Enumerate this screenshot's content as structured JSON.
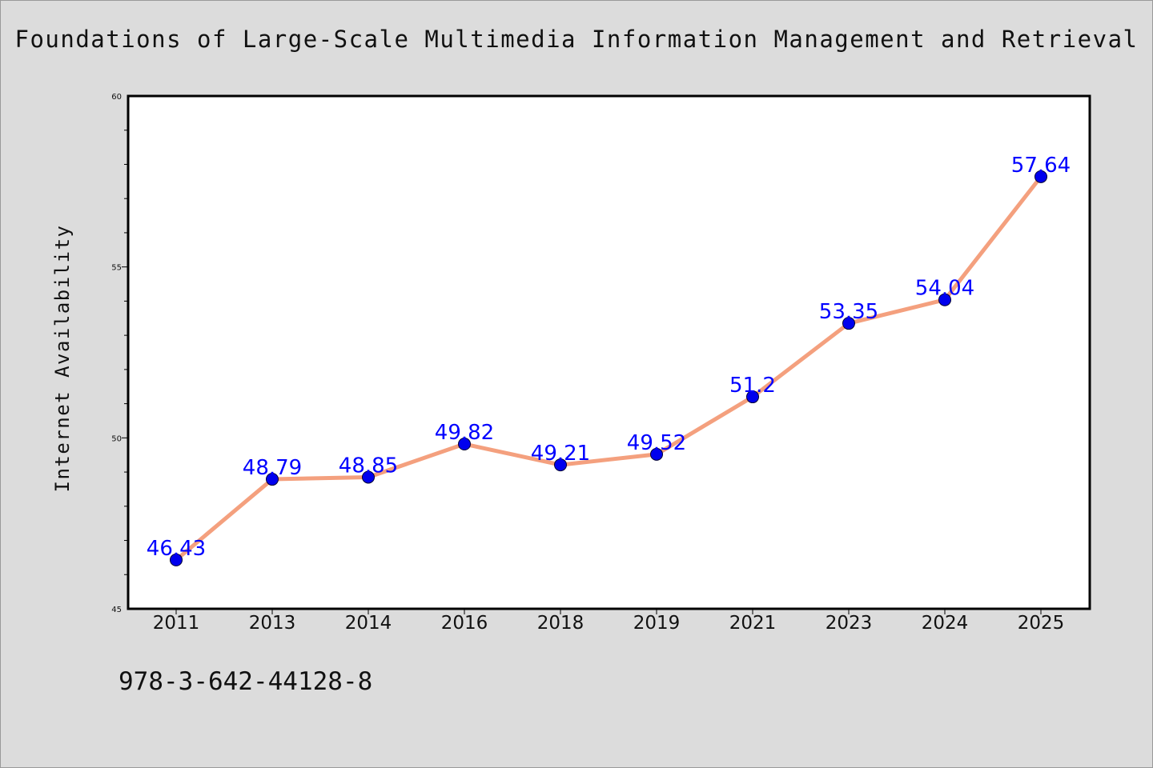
{
  "chart_data": {
    "type": "line",
    "title": "Foundations of Large-Scale Multimedia Information Management and Retrieval",
    "xlabel": "",
    "ylabel": "Internet Availability",
    "categories": [
      "2011",
      "2013",
      "2014",
      "2016",
      "2018",
      "2019",
      "2021",
      "2023",
      "2024",
      "2025"
    ],
    "values": [
      46.43,
      48.79,
      48.85,
      49.82,
      49.21,
      49.52,
      51.2,
      53.35,
      54.04,
      57.64
    ],
    "data_labels": [
      "46.43",
      "48.79",
      "48.85",
      "49.82",
      "49.21",
      "49.52",
      "51.2",
      "53.35",
      "54.04",
      "57.64"
    ],
    "ylim": [
      45,
      60
    ],
    "yticks": [
      "45",
      "50",
      "55",
      "60"
    ],
    "grid": false,
    "line_color": "#f4a07e",
    "marker_color": "#0000ee",
    "label_color": "#0000ff"
  },
  "footer": {
    "isbn": "978-3-642-44128-8"
  },
  "colors": {
    "background": "#dcdcdc",
    "plot_background": "#ffffff"
  }
}
